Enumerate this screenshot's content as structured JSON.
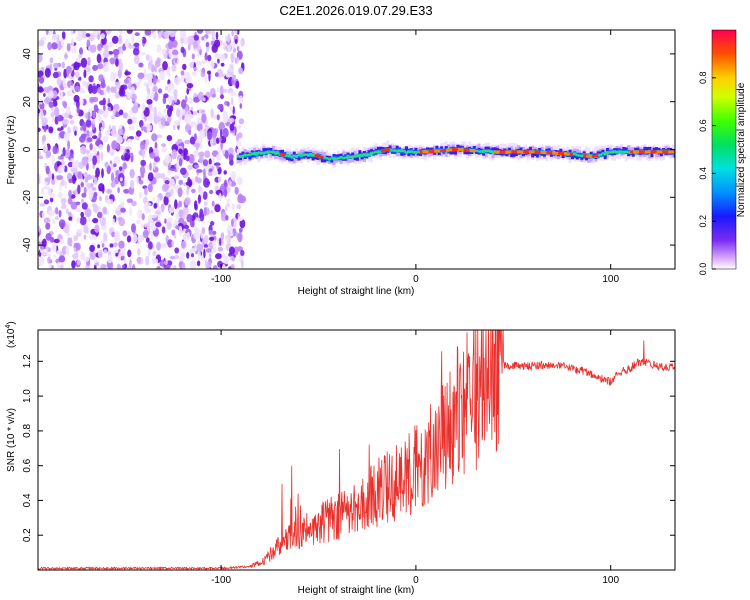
{
  "title": "C2E1.2026.019.07.29.E33",
  "chart_data": [
    {
      "type": "heatmap",
      "xlabel": "Height of straight line (km)",
      "ylabel": "Frequency (Hz)",
      "xlim": [
        -194,
        133
      ],
      "ylim": [
        -50,
        50
      ],
      "xticks": [
        -100,
        0,
        100
      ],
      "yticks": [
        -40,
        -20,
        0,
        20,
        40
      ],
      "noise_region_x": [
        -194,
        -88
      ],
      "signal_track": {
        "x": [
          -92,
          -85,
          -75,
          -65,
          -55,
          -45,
          -35,
          -25,
          -15,
          -5,
          5,
          20,
          40,
          60,
          80,
          90,
          100,
          110,
          133
        ],
        "frequency_hz": [
          -3,
          -2,
          -1,
          -3,
          -2,
          -4,
          -3,
          -2,
          0,
          -1,
          -1,
          0,
          -1,
          -1,
          -2,
          -3,
          -1,
          -1,
          -1
        ]
      },
      "colorbar": {
        "label": "Normalized spectral amplitude",
        "range": [
          0.0,
          1.0
        ],
        "ticks": [
          "0.0",
          "0.2",
          "0.4",
          "0.6",
          "0.8"
        ]
      }
    },
    {
      "type": "line",
      "xlabel": "Height of straight line (km)",
      "ylabel": "SNR (10 * v/v)",
      "yscale_label": "(x10",
      "yscale_exp": "4",
      "xlim": [
        -194,
        133
      ],
      "ylim": [
        0.0,
        1.38
      ],
      "xticks": [
        -100,
        0,
        100
      ],
      "yticks": [
        "0.2",
        "0.4",
        "0.6",
        "0.8",
        "1.0",
        "1.2"
      ],
      "series": [
        {
          "name": "SNR",
          "color": "#e8302c",
          "x": [
            -194,
            -150,
            -100,
            -85,
            -78,
            -72,
            -65,
            -58,
            -50,
            -42,
            -35,
            -28,
            -20,
            -12,
            -5,
            0,
            5,
            10,
            15,
            20,
            25,
            30,
            35,
            40,
            45,
            55,
            65,
            75,
            85,
            95,
            100,
            105,
            110,
            115,
            120,
            125,
            133
          ],
          "values": [
            0.01,
            0.01,
            0.01,
            0.02,
            0.05,
            0.12,
            0.18,
            0.22,
            0.26,
            0.3,
            0.32,
            0.38,
            0.44,
            0.5,
            0.55,
            0.6,
            0.66,
            0.72,
            0.8,
            0.88,
            0.96,
            1.02,
            1.06,
            1.1,
            1.18,
            1.17,
            1.18,
            1.17,
            1.15,
            1.1,
            1.08,
            1.14,
            1.16,
            1.2,
            1.19,
            1.17,
            1.16
          ]
        }
      ]
    }
  ]
}
